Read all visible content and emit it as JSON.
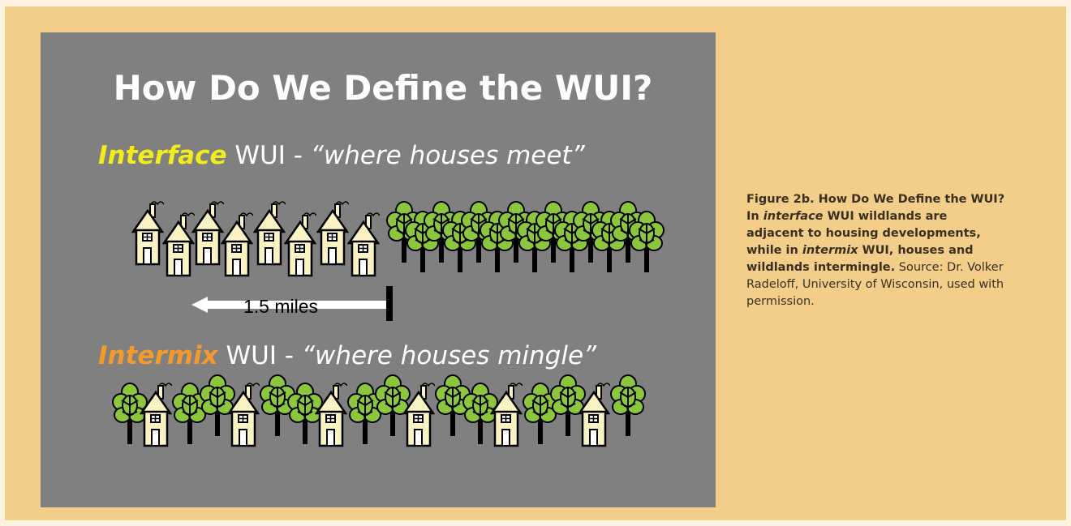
{
  "slide": {
    "title": "How Do We Define the WUI?",
    "interface": {
      "term": "Interface",
      "text": " WUI - ",
      "quote": "“where houses meet”"
    },
    "distance": "1.5 miles",
    "intermix": {
      "term": "Intermix",
      "text": " WUI - ",
      "quote": "“where houses mingle”"
    }
  },
  "caption": {
    "bold1": "Figure 2b. How Do We Define the WUI? In ",
    "term1": "interface",
    "bold2": " WUI wildlands are adjacent to housing developments, while in ",
    "term2": "intermix",
    "bold3": " WUI, houses and wildlands intermingle.",
    "source": " Source: Dr. Volker Radeloff, University of Wisconsin, used with permission."
  }
}
